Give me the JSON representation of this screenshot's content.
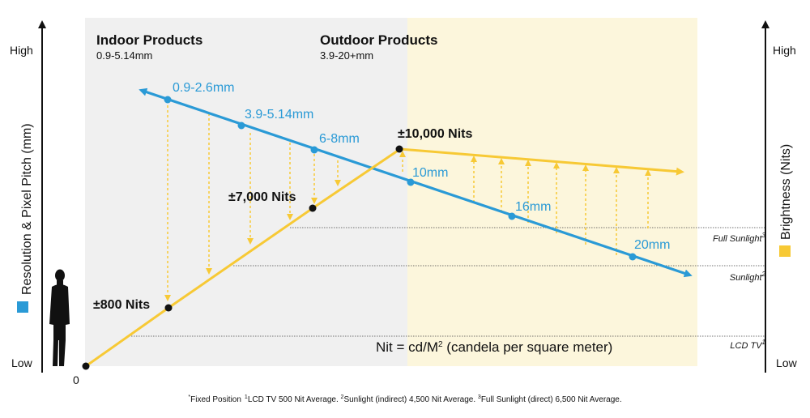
{
  "zones": {
    "indoor": {
      "title": "Indoor Products",
      "range": "0.9-5.14mm",
      "color": "#f0f0f0"
    },
    "outdoor": {
      "title": "Outdoor Products",
      "range": "3.9-20+mm",
      "color": "#fcf6dc"
    }
  },
  "left_axis": {
    "high": "High",
    "low": "Low",
    "title": "Resolution & Pixel Pitch (mm)",
    "swatch": "#2a9ad6"
  },
  "right_axis": {
    "high": "High",
    "low": "Low",
    "title": "Brightness (Nits)",
    "swatch": "#f7c935"
  },
  "origin": "0",
  "pitch_labels": [
    "0.9-2.6mm",
    "3.9-5.14mm",
    "6-8mm",
    "10mm",
    "16mm",
    "20mm"
  ],
  "nit_labels": [
    "±800 Nits",
    "±7,000 Nits",
    "±10,000 Nits"
  ],
  "reference_lines": {
    "full_sunlight": {
      "label": "Full Sunlight",
      "sup": "3"
    },
    "sunlight": {
      "label": "Sunlight",
      "sup": "2"
    },
    "lcd_tv": {
      "label": "LCD TV",
      "sup": "1"
    }
  },
  "formula": {
    "prefix": "Nit = cd/M",
    "sup": "2",
    "suffix": " (candela per square meter)"
  },
  "footnote": {
    "p1": "Fixed Position",
    "p2": "LCD TV 500 Nit Average. ",
    "p3": "Sunlight (indirect) 4,500 Nit Average.  ",
    "p4": "Full Sunlight (direct) 6,500 Nit Average."
  },
  "colors": {
    "blue": "#2a9ad6",
    "yellow": "#f7c935",
    "black": "#111111"
  }
}
